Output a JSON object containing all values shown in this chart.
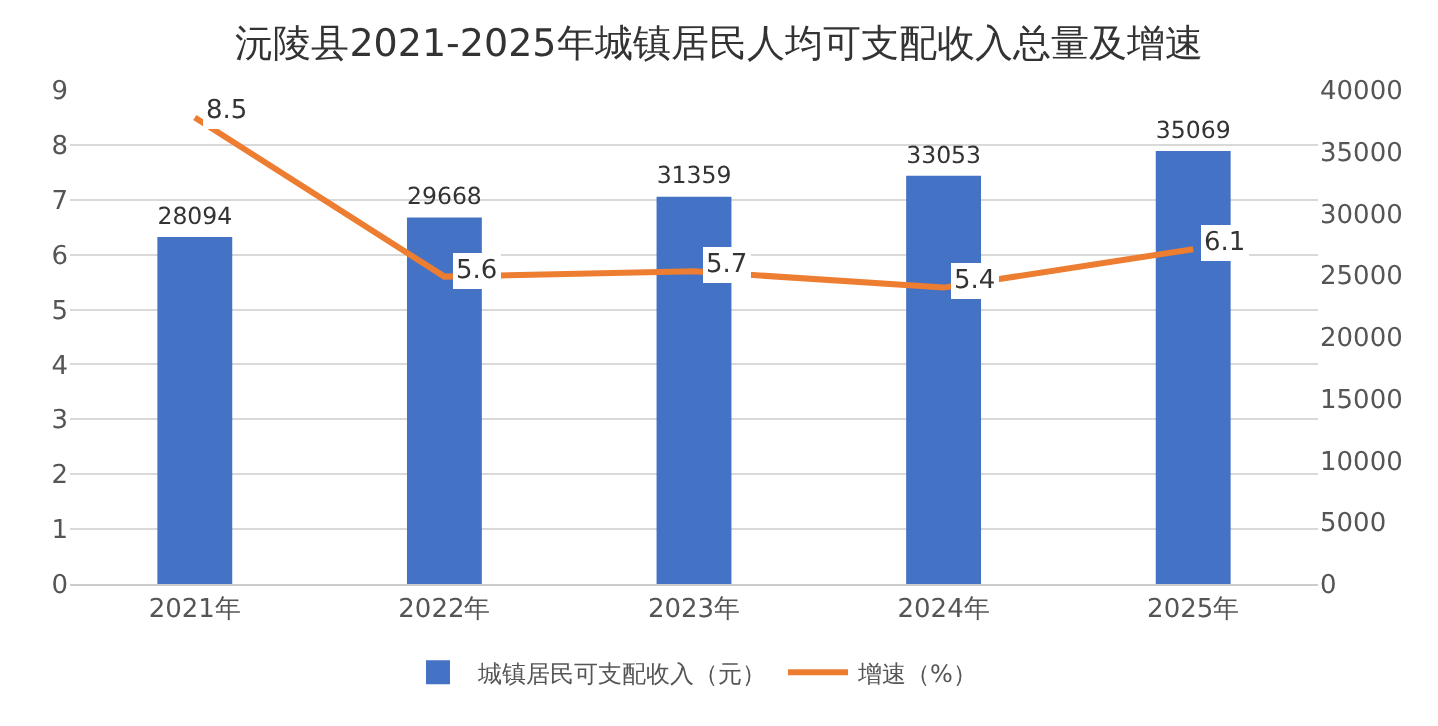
{
  "chart_data": {
    "type": "bar",
    "title": "沅陵县2021-2025年城镇居民人均可支配收入总量及增速",
    "categories": [
      "2021年",
      "2022年",
      "2023年",
      "2024年",
      "2025年"
    ],
    "series": [
      {
        "name": "城镇居民可支配收入（元）",
        "axis": "y2",
        "color": "#4472c4",
        "values": [
          28094,
          29668,
          31359,
          33053,
          35069
        ]
      },
      {
        "name": "增速（%）",
        "type": "line",
        "axis": "y",
        "color": "#ed7d31",
        "values": [
          8.5,
          5.6,
          5.7,
          5.4,
          6.1
        ]
      }
    ],
    "ylim": [
      0,
      9
    ],
    "yticks": [
      0,
      1,
      2,
      3,
      4,
      5,
      6,
      7,
      8,
      9
    ],
    "y2lim": [
      0,
      40000
    ],
    "y2ticks": [
      0,
      5000,
      10000,
      15000,
      20000,
      25000,
      30000,
      35000,
      40000
    ],
    "grid": "y",
    "legend": "bottom",
    "line_style": "solid",
    "data_labels": true
  }
}
